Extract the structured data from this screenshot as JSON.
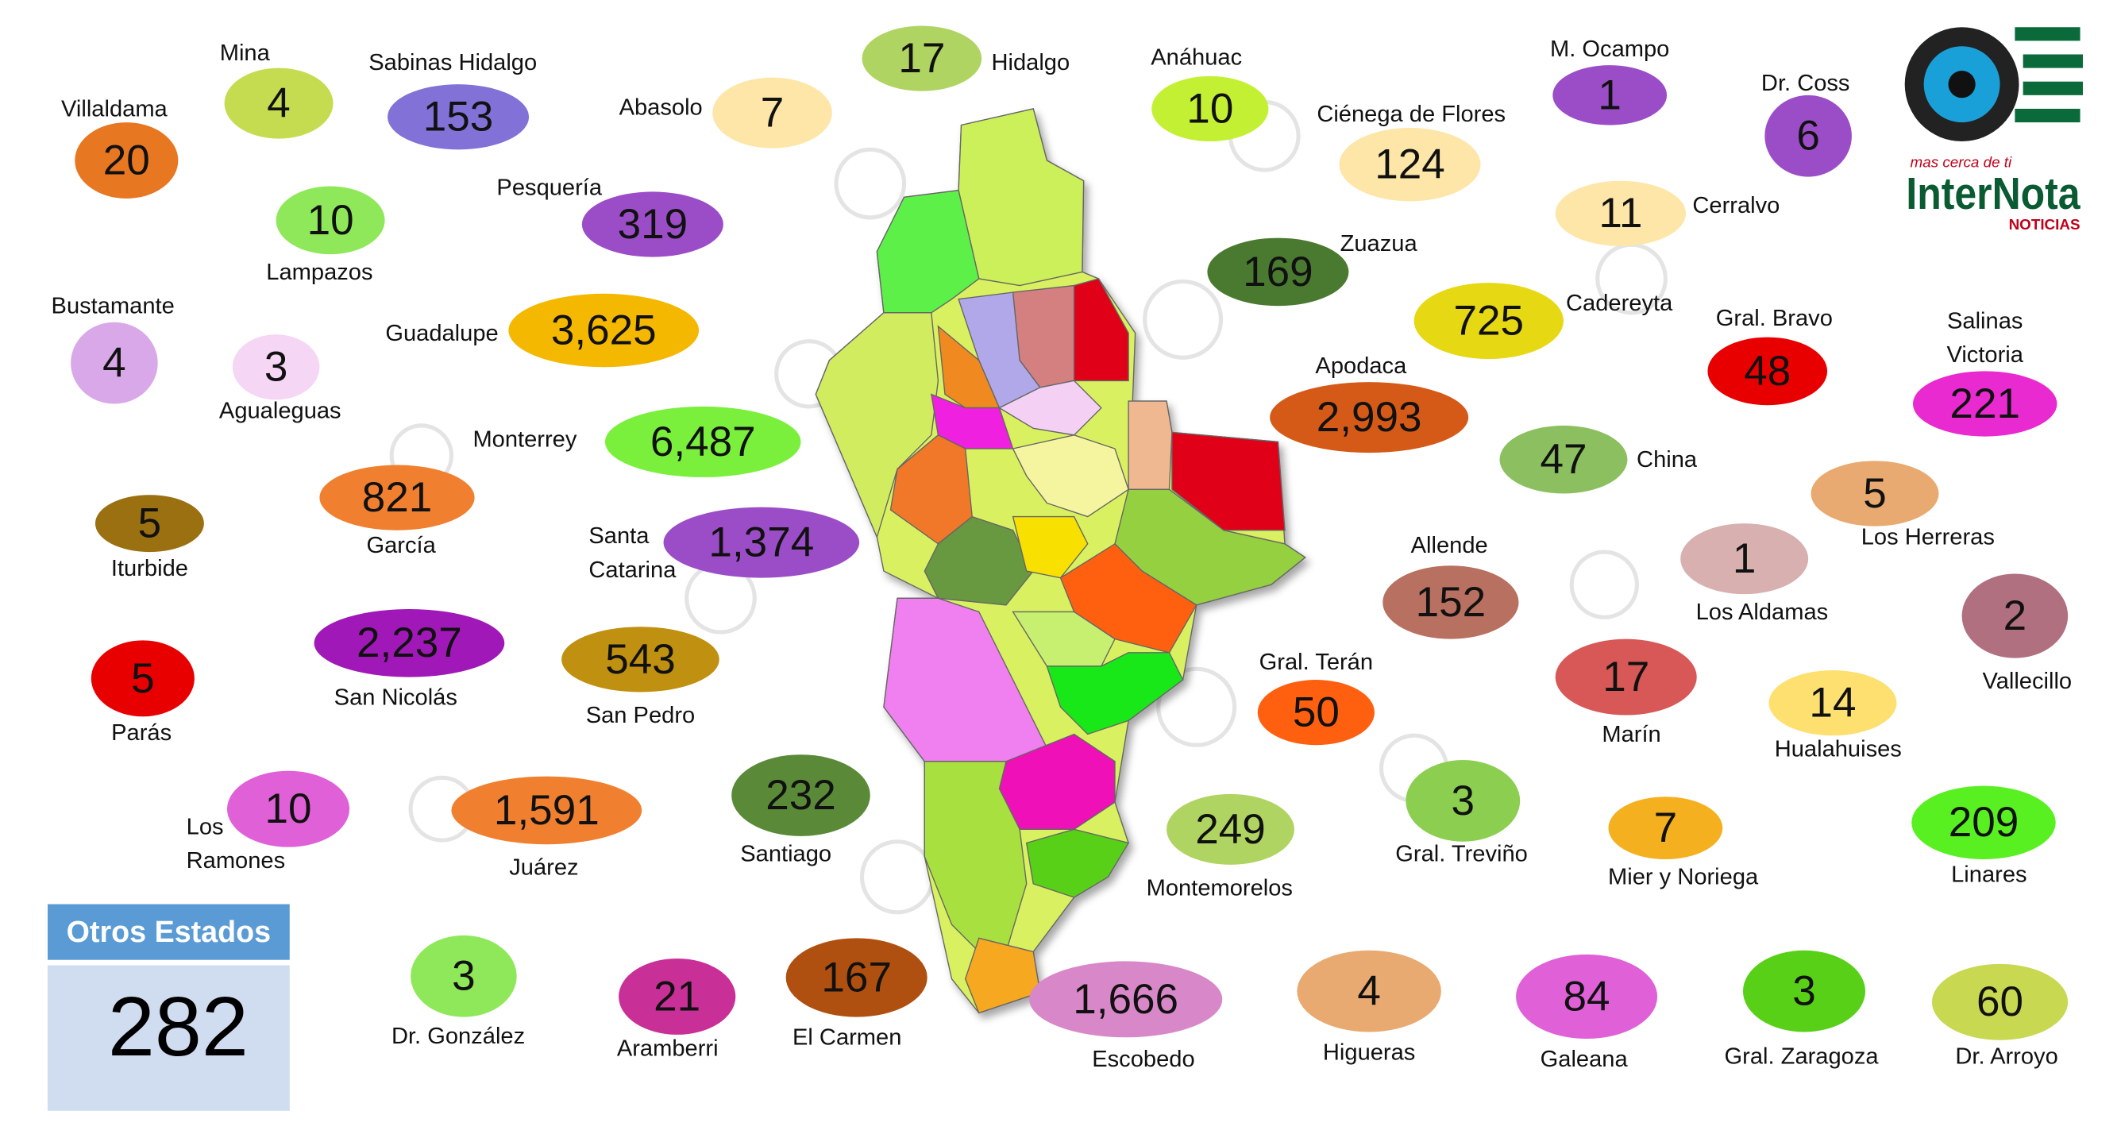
{
  "municipalities": [
    {
      "name": "Villaldama",
      "value": 20,
      "color": "#e87722"
    },
    {
      "name": "Mina",
      "value": 4,
      "color": "#c5dc50"
    },
    {
      "name": "Sabinas Hidalgo",
      "value": 153,
      "color": "#8272d8"
    },
    {
      "name": "Abasolo",
      "value": 7,
      "color": "#fde6a8"
    },
    {
      "name": "Hidalgo",
      "value": 17,
      "color": "#b0d462"
    },
    {
      "name": "Anáhuac",
      "value": 10,
      "color": "#c4f034"
    },
    {
      "name": "Ciénega de Flores",
      "value": 124,
      "color": "#fde6a8"
    },
    {
      "name": "M. Ocampo",
      "value": 1,
      "color": "#9b4dc8"
    },
    {
      "name": "Dr. Coss",
      "value": 6,
      "color": "#9b4dc8"
    },
    {
      "name": "Lampazos",
      "value": 10,
      "color": "#8ee85a"
    },
    {
      "name": "Pesquería",
      "value": 319,
      "color": "#9b4dc8"
    },
    {
      "name": "Cerralvo",
      "value": 11,
      "color": "#fde6a8"
    },
    {
      "name": "Zuazua",
      "value": 169,
      "color": "#4a7a30"
    },
    {
      "name": "Bustamante",
      "value": 4,
      "color": "#d9a8e8"
    },
    {
      "name": "Agualeguas",
      "value": 3,
      "color": "#f5d6f5"
    },
    {
      "name": "Guadalupe",
      "value": {
        "value": 3625,
        "label": "3,625"
      },
      "color": "#f5b800"
    },
    {
      "name": "Cadereyta",
      "value": 725,
      "color": "#e6d812"
    },
    {
      "name": "Gral. Bravo",
      "value": 48,
      "color": "#e80000"
    },
    {
      "name": [
        "Salinas",
        "Victoria"
      ],
      "value": 221,
      "color": "#e82ad0"
    },
    {
      "name": "Apodaca",
      "value": {
        "value": 2993,
        "label": "2,993"
      },
      "color": "#d55a18"
    },
    {
      "name": "Monterrey",
      "value": {
        "value": 6487,
        "label": "6,487"
      },
      "color": "#7af03c"
    },
    {
      "name": "China",
      "value": 47,
      "color": "#8cbf60"
    },
    {
      "name": "García",
      "value": 821,
      "color": "#f08030"
    },
    {
      "name": "Iturbide",
      "value": 5,
      "color": "#9a7010"
    },
    {
      "name": "Los Herreras",
      "value": 5,
      "color": "#e8aa70"
    },
    {
      "name": [
        "Santa",
        "Catarina"
      ],
      "value": {
        "value": 1374,
        "label": "1,374"
      },
      "color": "#9b4dc8"
    },
    {
      "name": "Los Aldamas",
      "value": 1,
      "color": "#d8b0b0"
    },
    {
      "name": "Allende",
      "value": 152,
      "color": "#b87060"
    },
    {
      "name": "Vallecillo",
      "value": 2,
      "color": "#b07080"
    },
    {
      "name": "San Nicolás",
      "value": {
        "value": 2237,
        "label": "2,237"
      },
      "color": "#a018b8"
    },
    {
      "name": "San Pedro",
      "value": 543,
      "color": "#c09010"
    },
    {
      "name": "Parás",
      "value": 5,
      "color": "#e80000"
    },
    {
      "name": "Gral. Terán",
      "value": 50,
      "color": "#ff6010"
    },
    {
      "name": "Marín",
      "value": 17,
      "color": "#d85858"
    },
    {
      "name": "Hualahuises",
      "value": 14,
      "color": "#fde070"
    },
    {
      "name": [
        "Los",
        "Ramones"
      ],
      "value": 10,
      "color": "#e060d8"
    },
    {
      "name": "Juárez",
      "value": {
        "value": 1591,
        "label": "1,591"
      },
      "color": "#f08030"
    },
    {
      "name": "Santiago",
      "value": 232,
      "color": "#5a8a38"
    },
    {
      "name": "Montemorelos",
      "value": 249,
      "color": "#b0d462"
    },
    {
      "name": "Gral. Treviño",
      "value": 3,
      "color": "#8ccf50"
    },
    {
      "name": "Mier y Noriega",
      "value": 7,
      "color": "#f5b020"
    },
    {
      "name": "Linares",
      "value": 209,
      "color": "#58f020"
    },
    {
      "name": "Dr. González",
      "value": 3,
      "color": "#8ee85a"
    },
    {
      "name": "Aramberri",
      "value": 21,
      "color": "#c83098"
    },
    {
      "name": "El Carmen",
      "value": 167,
      "color": "#b05010"
    },
    {
      "name": "Escobedo",
      "value": {
        "value": 1666,
        "label": "1,666"
      },
      "color": "#d888c8"
    },
    {
      "name": "Higueras",
      "value": 4,
      "color": "#e8aa70"
    },
    {
      "name": "Galeana",
      "value": 84,
      "color": "#e060d8"
    },
    {
      "name": "Gral. Zaragoza",
      "value": 3,
      "color": "#58d018"
    },
    {
      "name": "Dr. Arroyo",
      "value": 60,
      "color": "#c8d850"
    }
  ],
  "other_states": {
    "title": "Otros Estados",
    "value": 282
  },
  "logo": {
    "tagline": "mas cerca de ti",
    "brand": "InterNota",
    "sub": "NOTICIAS"
  }
}
